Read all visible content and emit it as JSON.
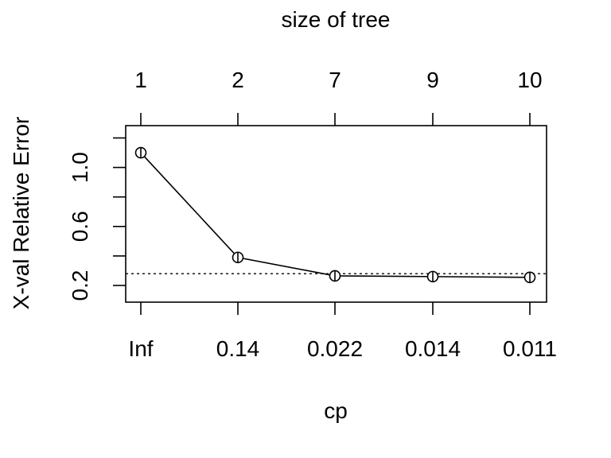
{
  "chart_data": {
    "type": "line",
    "title": "size of tree",
    "xlabel": "cp",
    "ylabel": "X-val Relative Error",
    "x_tick_labels": [
      "Inf",
      "0.14",
      "0.022",
      "0.014",
      "0.011"
    ],
    "top_tick_labels": [
      "1",
      "2",
      "7",
      "9",
      "10"
    ],
    "series": [
      {
        "values": [
          1.1,
          0.39,
          0.265,
          0.26,
          0.255
        ]
      }
    ],
    "y_ticks": [
      0.2,
      0.4,
      0.6,
      0.8,
      1.0,
      1.2
    ],
    "y_tick_labels": [
      "0.2",
      "",
      "0.6",
      "",
      "1.0",
      ""
    ],
    "ylim": [
      0.15,
      1.25
    ],
    "reference_line": {
      "value": 0.28,
      "style": "dotted"
    },
    "grid": false,
    "legend": "none"
  }
}
